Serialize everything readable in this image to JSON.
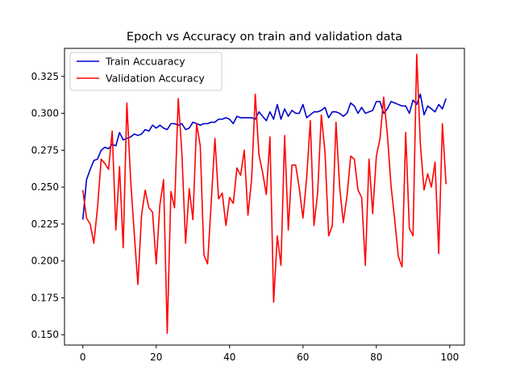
{
  "chart_data": {
    "type": "line",
    "title": "Epoch vs Accuracy on train and validation data",
    "xlabel": "",
    "ylabel": "",
    "xlim": [
      -5,
      104
    ],
    "ylim": [
      0.143,
      0.344
    ],
    "xticks": [
      0,
      20,
      40,
      60,
      80,
      100
    ],
    "yticks": [
      0.15,
      0.175,
      0.2,
      0.225,
      0.25,
      0.275,
      0.3,
      0.325
    ],
    "grid": false,
    "legend_position": "upper-left",
    "x": [
      0,
      1,
      2,
      3,
      4,
      5,
      6,
      7,
      8,
      9,
      10,
      11,
      12,
      13,
      14,
      15,
      16,
      17,
      18,
      19,
      20,
      21,
      22,
      23,
      24,
      25,
      26,
      27,
      28,
      29,
      30,
      31,
      32,
      33,
      34,
      35,
      36,
      37,
      38,
      39,
      40,
      41,
      42,
      43,
      44,
      45,
      46,
      47,
      48,
      49,
      50,
      51,
      52,
      53,
      54,
      55,
      56,
      57,
      58,
      59,
      60,
      61,
      62,
      63,
      64,
      65,
      66,
      67,
      68,
      69,
      70,
      71,
      72,
      73,
      74,
      75,
      76,
      77,
      78,
      79,
      80,
      81,
      82,
      83,
      84,
      85,
      86,
      87,
      88,
      89,
      90,
      91,
      92,
      93,
      94,
      95,
      96,
      97,
      98,
      99
    ],
    "series": [
      {
        "name": "Train Accuaracy",
        "color": "#0000cc",
        "values": [
          0.228,
          0.255,
          0.262,
          0.268,
          0.269,
          0.275,
          0.277,
          0.276,
          0.279,
          0.278,
          0.287,
          0.282,
          0.283,
          0.284,
          0.286,
          0.285,
          0.286,
          0.289,
          0.288,
          0.292,
          0.29,
          0.292,
          0.29,
          0.289,
          0.293,
          0.293,
          0.292,
          0.293,
          0.289,
          0.29,
          0.294,
          0.293,
          0.292,
          0.293,
          0.293,
          0.294,
          0.294,
          0.296,
          0.296,
          0.297,
          0.296,
          0.293,
          0.298,
          0.297,
          0.297,
          0.297,
          0.297,
          0.296,
          0.301,
          0.298,
          0.295,
          0.301,
          0.296,
          0.306,
          0.296,
          0.303,
          0.298,
          0.302,
          0.3,
          0.3,
          0.306,
          0.297,
          0.299,
          0.301,
          0.301,
          0.302,
          0.304,
          0.297,
          0.301,
          0.301,
          0.3,
          0.298,
          0.3,
          0.307,
          0.305,
          0.3,
          0.304,
          0.3,
          0.301,
          0.302,
          0.308,
          0.308,
          0.3,
          0.303,
          0.308,
          0.307,
          0.306,
          0.305,
          0.305,
          0.3,
          0.309,
          0.306,
          0.313,
          0.299,
          0.305,
          0.303,
          0.301,
          0.306,
          0.303,
          0.31
        ]
      },
      {
        "name": "Validation Accuracy",
        "color": "#ff0000",
        "values": [
          0.248,
          0.229,
          0.225,
          0.212,
          0.236,
          0.269,
          0.266,
          0.262,
          0.288,
          0.221,
          0.264,
          0.209,
          0.307,
          0.256,
          0.219,
          0.184,
          0.231,
          0.248,
          0.236,
          0.233,
          0.198,
          0.238,
          0.255,
          0.151,
          0.247,
          0.236,
          0.31,
          0.273,
          0.212,
          0.249,
          0.228,
          0.293,
          0.278,
          0.204,
          0.198,
          0.24,
          0.283,
          0.242,
          0.246,
          0.224,
          0.243,
          0.239,
          0.263,
          0.258,
          0.275,
          0.231,
          0.255,
          0.313,
          0.272,
          0.26,
          0.245,
          0.284,
          0.172,
          0.217,
          0.197,
          0.285,
          0.221,
          0.265,
          0.265,
          0.249,
          0.229,
          0.256,
          0.295,
          0.224,
          0.246,
          0.299,
          0.274,
          0.217,
          0.224,
          0.294,
          0.25,
          0.226,
          0.244,
          0.271,
          0.269,
          0.248,
          0.243,
          0.197,
          0.269,
          0.232,
          0.271,
          0.283,
          0.311,
          0.286,
          0.251,
          0.228,
          0.203,
          0.196,
          0.287,
          0.222,
          0.217,
          0.34,
          0.279,
          0.248,
          0.259,
          0.25,
          0.267,
          0.205,
          0.293,
          0.252
        ]
      }
    ]
  }
}
